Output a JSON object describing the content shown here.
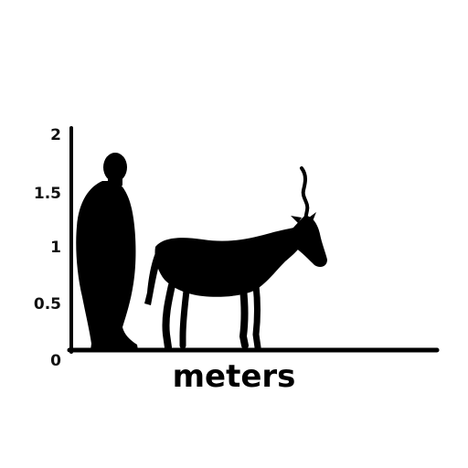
{
  "scale_axis": {
    "unit_label": "meters",
    "ticks": [
      "0",
      "0.5",
      "1",
      "1.5",
      "2"
    ]
  },
  "figures": [
    {
      "icon": "human-silhouette-icon",
      "height_m": 2.0
    },
    {
      "icon": "antelope-silhouette-icon",
      "height_m": 1.72
    }
  ],
  "colors": {
    "silhouette": "#000000",
    "axis": "#000000",
    "background": "#ffffff"
  }
}
